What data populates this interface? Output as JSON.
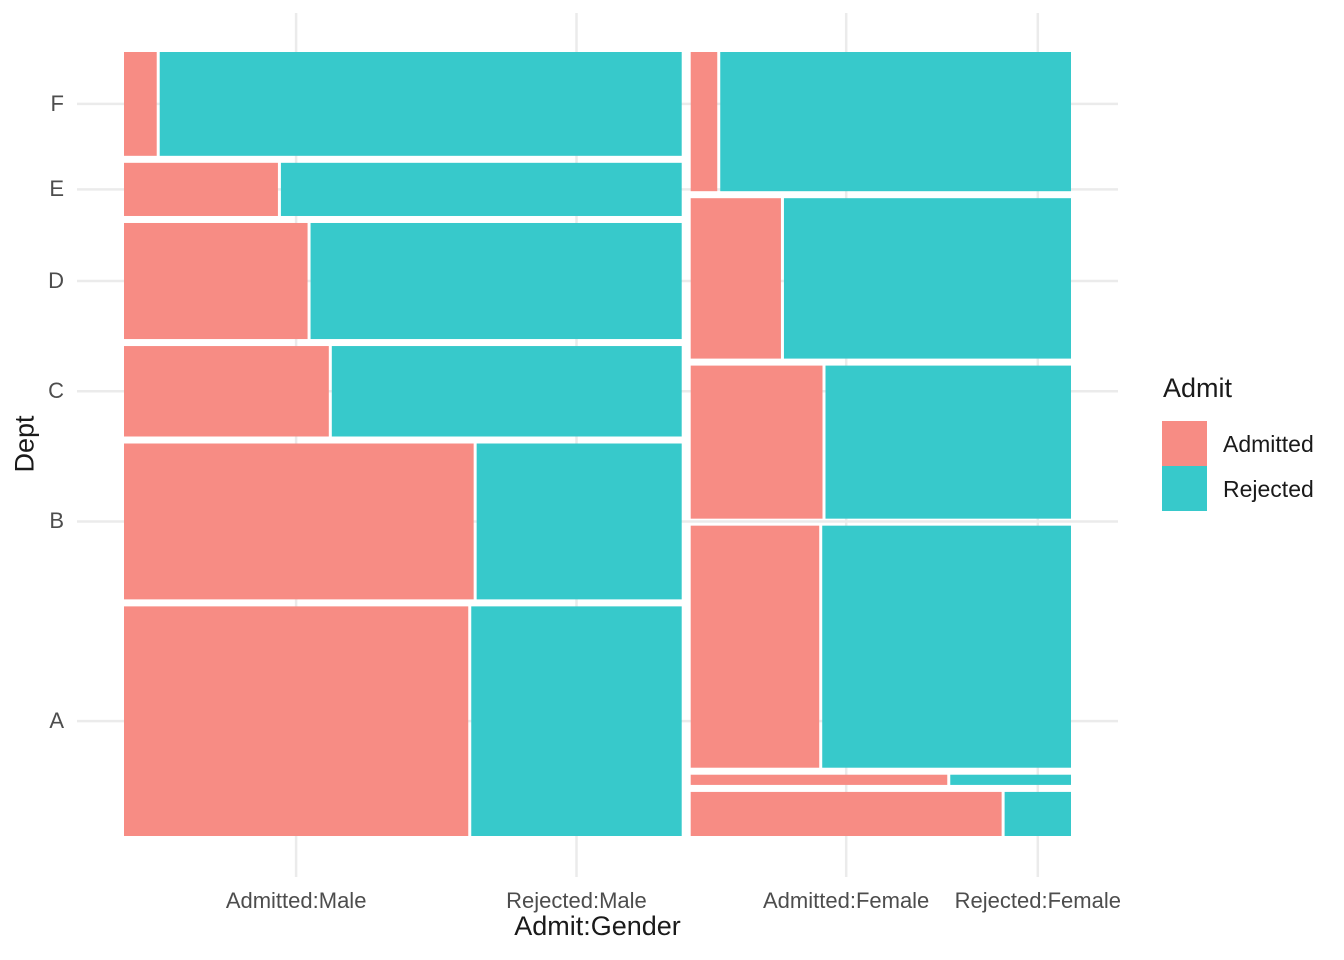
{
  "chart_data": {
    "type": "mosaic",
    "title": "",
    "xlabel": "Admit:Gender",
    "ylabel": "Dept",
    "x_tick_labels": [
      "Admitted:Male",
      "Rejected:Male",
      "Admitted:Female",
      "Rejected:Female"
    ],
    "y_tick_labels_bottom_to_top": [
      "A",
      "B",
      "C",
      "D",
      "E",
      "F"
    ],
    "genders": [
      "Male",
      "Female"
    ],
    "admit_levels": [
      "Admitted",
      "Rejected"
    ],
    "legend": {
      "title": "Admit",
      "items": [
        {
          "label": "Admitted",
          "color": "#F78C84"
        },
        {
          "label": "Rejected",
          "color": "#37C9CB"
        }
      ]
    },
    "style": {
      "background": "#FFFFFF",
      "grid_color": "#EBEBEB",
      "tick_label_color": "#4D4D4D",
      "title_color": "#1A1A1A",
      "grid": "major-only, no axis lines, no tick marks (theme_minimal)"
    },
    "counts": [
      {
        "dept": "A",
        "male": {
          "Admitted": 512,
          "Rejected": 313
        },
        "female": {
          "Admitted": 89,
          "Rejected": 19
        }
      },
      {
        "dept": "B",
        "male": {
          "Admitted": 353,
          "Rejected": 207
        },
        "female": {
          "Admitted": 17,
          "Rejected": 8
        }
      },
      {
        "dept": "C",
        "male": {
          "Admitted": 120,
          "Rejected": 205
        },
        "female": {
          "Admitted": 202,
          "Rejected": 391
        }
      },
      {
        "dept": "D",
        "male": {
          "Admitted": 138,
          "Rejected": 279
        },
        "female": {
          "Admitted": 131,
          "Rejected": 244
        }
      },
      {
        "dept": "E",
        "male": {
          "Admitted": 53,
          "Rejected": 138
        },
        "female": {
          "Admitted": 94,
          "Rejected": 299
        }
      },
      {
        "dept": "F",
        "male": {
          "Admitted": 22,
          "Rejected": 351
        },
        "female": {
          "Admitted": 24,
          "Rejected": 317
        }
      }
    ]
  }
}
